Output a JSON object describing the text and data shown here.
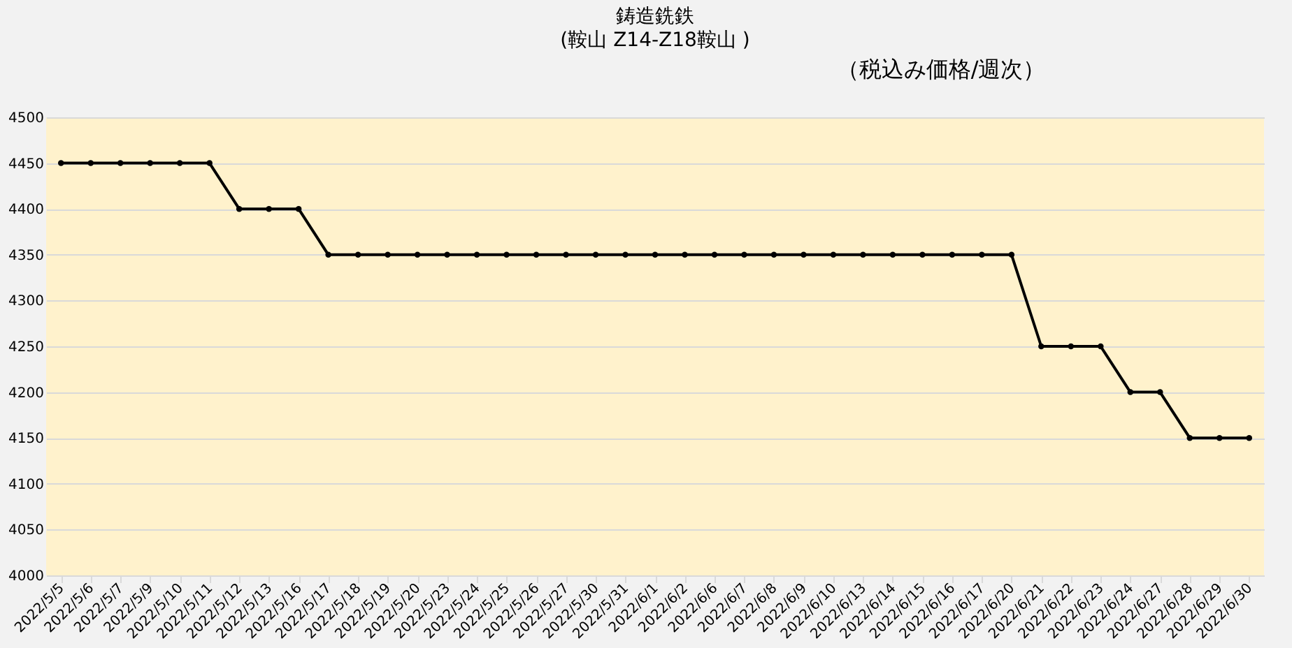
{
  "chart_data": {
    "type": "line",
    "title": "鋳造銑鉄",
    "subtitle": "(鞍山 Z14-Z18鞍山 )",
    "annotations": [
      "（税込み価格/週次）"
    ],
    "categories": [
      "2022/5/5",
      "2022/5/6",
      "2022/5/7",
      "2022/5/9",
      "2022/5/10",
      "2022/5/11",
      "2022/5/12",
      "2022/5/13",
      "2022/5/16",
      "2022/5/17",
      "2022/5/18",
      "2022/5/19",
      "2022/5/20",
      "2022/5/23",
      "2022/5/24",
      "2022/5/25",
      "2022/5/26",
      "2022/5/27",
      "2022/5/30",
      "2022/5/31",
      "2022/6/1",
      "2022/6/2",
      "2022/6/6",
      "2022/6/7",
      "2022/6/8",
      "2022/6/9",
      "2022/6/10",
      "2022/6/13",
      "2022/6/14",
      "2022/6/15",
      "2022/6/16",
      "2022/6/17",
      "2022/6/20",
      "2022/6/21",
      "2022/6/22",
      "2022/6/23",
      "2022/6/24",
      "2022/6/27",
      "2022/6/28",
      "2022/6/29",
      "2022/6/30"
    ],
    "series": [
      {
        "color": "#000000",
        "values": [
          4450,
          4450,
          4450,
          4450,
          4450,
          4450,
          4400,
          4400,
          4400,
          4350,
          4350,
          4350,
          4350,
          4350,
          4350,
          4350,
          4350,
          4350,
          4350,
          4350,
          4350,
          4350,
          4350,
          4350,
          4350,
          4350,
          4350,
          4350,
          4350,
          4350,
          4350,
          4350,
          4350,
          4250,
          4250,
          4250,
          4200,
          4200,
          4150,
          4150,
          4150
        ]
      }
    ],
    "ylim": [
      4000,
      4500
    ],
    "yticks": [
      4000,
      4050,
      4100,
      4150,
      4200,
      4250,
      4300,
      4350,
      4400,
      4450,
      4500
    ],
    "grid": "y",
    "legend": false,
    "marker": "circle",
    "line_style": "solid"
  }
}
